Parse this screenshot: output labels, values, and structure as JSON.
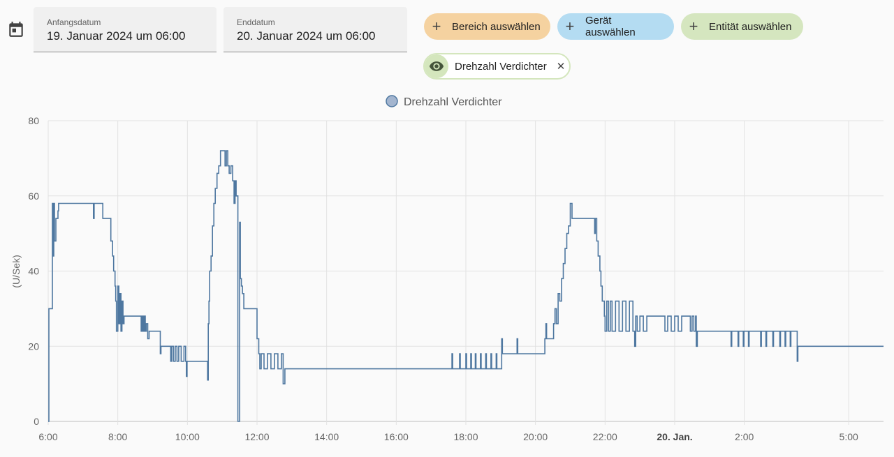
{
  "header": {
    "start_label": "Anfangsdatum",
    "start_value": "19. Januar 2024 um 06:00",
    "end_label": "Enddatum",
    "end_value": "20. Januar 2024 um 06:00"
  },
  "chips": [
    {
      "label": "Bereich auswählen",
      "color": "#f5d2a0"
    },
    {
      "label": "Gerät auswählen",
      "color": "#b4dcf2"
    },
    {
      "label": "Entität auswählen",
      "color": "#d5e6bf"
    }
  ],
  "selected_entity": {
    "label": "Drehzahl Verdichter",
    "icon": "eye-icon",
    "close_icon": "close-icon",
    "color": "#d4e6bd"
  },
  "chart_data": {
    "type": "line",
    "step": true,
    "legend": {
      "placement": "top-center",
      "entries": [
        "Drehzahl Verdichter"
      ]
    },
    "ylabel": "(U/Sek)",
    "ylim": [
      0,
      80
    ],
    "yticks": [
      "0",
      "20",
      "40",
      "60",
      "80"
    ],
    "xlim_hours": [
      6,
      30
    ],
    "xticks": [
      {
        "h": 6,
        "label": "6:00"
      },
      {
        "h": 8,
        "label": "8:00"
      },
      {
        "h": 10,
        "label": "10:00"
      },
      {
        "h": 12,
        "label": "12:00"
      },
      {
        "h": 14,
        "label": "14:00"
      },
      {
        "h": 16,
        "label": "16:00"
      },
      {
        "h": 18,
        "label": "18:00"
      },
      {
        "h": 20,
        "label": "20:00"
      },
      {
        "h": 22,
        "label": "22:00"
      },
      {
        "h": 24,
        "label": "20. Jan.",
        "bold": true
      },
      {
        "h": 26,
        "label": "2:00"
      },
      {
        "h": 29,
        "label": "5:00"
      }
    ],
    "grid": true,
    "series": [
      {
        "name": "Drehzahl Verdichter",
        "color": "#4e77a0",
        "points": [
          [
            6.0,
            0
          ],
          [
            6.02,
            30
          ],
          [
            6.1,
            30
          ],
          [
            6.12,
            58
          ],
          [
            6.14,
            44
          ],
          [
            6.16,
            58
          ],
          [
            6.18,
            48
          ],
          [
            6.22,
            54
          ],
          [
            6.28,
            56
          ],
          [
            6.3,
            58
          ],
          [
            7.28,
            58
          ],
          [
            7.3,
            54
          ],
          [
            7.32,
            58
          ],
          [
            7.55,
            58
          ],
          [
            7.57,
            54
          ],
          [
            7.78,
            54
          ],
          [
            7.8,
            48
          ],
          [
            7.85,
            44
          ],
          [
            7.88,
            40
          ],
          [
            7.92,
            36
          ],
          [
            7.94,
            32
          ],
          [
            7.96,
            24
          ],
          [
            8.0,
            36
          ],
          [
            8.03,
            26
          ],
          [
            8.06,
            34
          ],
          [
            8.09,
            24
          ],
          [
            8.12,
            32
          ],
          [
            8.15,
            26
          ],
          [
            8.18,
            28
          ],
          [
            8.65,
            28
          ],
          [
            8.67,
            24
          ],
          [
            8.7,
            28
          ],
          [
            8.73,
            24
          ],
          [
            8.76,
            28
          ],
          [
            8.79,
            24
          ],
          [
            8.82,
            26
          ],
          [
            8.86,
            22
          ],
          [
            8.9,
            24
          ],
          [
            9.2,
            24
          ],
          [
            9.22,
            18
          ],
          [
            9.24,
            20
          ],
          [
            9.5,
            20
          ],
          [
            9.52,
            16
          ],
          [
            9.55,
            20
          ],
          [
            9.6,
            16
          ],
          [
            9.65,
            20
          ],
          [
            9.7,
            16
          ],
          [
            9.75,
            20
          ],
          [
            9.82,
            16
          ],
          [
            9.9,
            20
          ],
          [
            9.95,
            16
          ],
          [
            9.97,
            12
          ],
          [
            9.99,
            16
          ],
          [
            10.55,
            16
          ],
          [
            10.58,
            11
          ],
          [
            10.6,
            26
          ],
          [
            10.62,
            32
          ],
          [
            10.64,
            40
          ],
          [
            10.68,
            44
          ],
          [
            10.72,
            52
          ],
          [
            10.76,
            58
          ],
          [
            10.8,
            62
          ],
          [
            10.85,
            66
          ],
          [
            10.9,
            68
          ],
          [
            10.95,
            72
          ],
          [
            11.05,
            72
          ],
          [
            11.08,
            68
          ],
          [
            11.12,
            72
          ],
          [
            11.16,
            68
          ],
          [
            11.2,
            66
          ],
          [
            11.25,
            68
          ],
          [
            11.3,
            64
          ],
          [
            11.34,
            58
          ],
          [
            11.37,
            64
          ],
          [
            11.4,
            60
          ],
          [
            11.45,
            0
          ],
          [
            11.5,
            53
          ],
          [
            11.52,
            38
          ],
          [
            11.55,
            36
          ],
          [
            11.58,
            34
          ],
          [
            11.62,
            30
          ],
          [
            11.95,
            30
          ],
          [
            12.0,
            22
          ],
          [
            12.05,
            18
          ],
          [
            12.08,
            14
          ],
          [
            12.12,
            18
          ],
          [
            12.2,
            14
          ],
          [
            12.3,
            18
          ],
          [
            12.4,
            14
          ],
          [
            12.5,
            18
          ],
          [
            12.6,
            14
          ],
          [
            12.7,
            18
          ],
          [
            12.75,
            10
          ],
          [
            12.8,
            14
          ],
          [
            17.58,
            14
          ],
          [
            17.6,
            18
          ],
          [
            17.62,
            14
          ],
          [
            17.8,
            14
          ],
          [
            17.82,
            18
          ],
          [
            17.84,
            14
          ],
          [
            17.98,
            14
          ],
          [
            18.0,
            18
          ],
          [
            18.02,
            14
          ],
          [
            18.12,
            14
          ],
          [
            18.14,
            18
          ],
          [
            18.16,
            14
          ],
          [
            18.25,
            14
          ],
          [
            18.27,
            18
          ],
          [
            18.29,
            14
          ],
          [
            18.4,
            14
          ],
          [
            18.42,
            18
          ],
          [
            18.44,
            14
          ],
          [
            18.55,
            14
          ],
          [
            18.57,
            18
          ],
          [
            18.59,
            14
          ],
          [
            18.7,
            14
          ],
          [
            18.72,
            18
          ],
          [
            18.74,
            14
          ],
          [
            18.85,
            14
          ],
          [
            18.87,
            18
          ],
          [
            18.89,
            14
          ],
          [
            19.0,
            14
          ],
          [
            19.03,
            22
          ],
          [
            19.05,
            18
          ],
          [
            19.45,
            18
          ],
          [
            19.47,
            22
          ],
          [
            19.49,
            18
          ],
          [
            20.25,
            18
          ],
          [
            20.27,
            22
          ],
          [
            20.3,
            26
          ],
          [
            20.32,
            22
          ],
          [
            20.5,
            22
          ],
          [
            20.52,
            26
          ],
          [
            20.56,
            30
          ],
          [
            20.6,
            26
          ],
          [
            20.65,
            34
          ],
          [
            20.7,
            32
          ],
          [
            20.75,
            38
          ],
          [
            20.8,
            42
          ],
          [
            20.85,
            46
          ],
          [
            20.9,
            50
          ],
          [
            20.95,
            52
          ],
          [
            21.0,
            58
          ],
          [
            21.05,
            54
          ],
          [
            21.65,
            54
          ],
          [
            21.7,
            50
          ],
          [
            21.72,
            54
          ],
          [
            21.76,
            48
          ],
          [
            21.8,
            44
          ],
          [
            21.85,
            40
          ],
          [
            21.88,
            36
          ],
          [
            21.92,
            32
          ],
          [
            21.98,
            28
          ],
          [
            22.0,
            24
          ],
          [
            22.05,
            32
          ],
          [
            22.1,
            24
          ],
          [
            22.15,
            32
          ],
          [
            22.2,
            24
          ],
          [
            22.3,
            32
          ],
          [
            22.4,
            24
          ],
          [
            22.5,
            32
          ],
          [
            22.6,
            24
          ],
          [
            22.7,
            32
          ],
          [
            22.8,
            24
          ],
          [
            22.85,
            20
          ],
          [
            22.88,
            28
          ],
          [
            22.92,
            24
          ],
          [
            23.0,
            28
          ],
          [
            23.1,
            24
          ],
          [
            23.2,
            28
          ],
          [
            23.7,
            28
          ],
          [
            23.72,
            24
          ],
          [
            23.8,
            28
          ],
          [
            23.9,
            24
          ],
          [
            24.0,
            28
          ],
          [
            24.1,
            24
          ],
          [
            24.2,
            28
          ],
          [
            24.4,
            28
          ],
          [
            24.45,
            24
          ],
          [
            24.5,
            28
          ],
          [
            24.55,
            24
          ],
          [
            24.6,
            28
          ],
          [
            24.62,
            20
          ],
          [
            24.65,
            24
          ],
          [
            25.6,
            24
          ],
          [
            25.62,
            20
          ],
          [
            25.64,
            24
          ],
          [
            25.8,
            24
          ],
          [
            25.82,
            20
          ],
          [
            25.84,
            24
          ],
          [
            25.95,
            24
          ],
          [
            25.97,
            20
          ],
          [
            25.99,
            24
          ],
          [
            26.1,
            24
          ],
          [
            26.12,
            20
          ],
          [
            26.14,
            24
          ],
          [
            26.45,
            24
          ],
          [
            26.47,
            20
          ],
          [
            26.49,
            24
          ],
          [
            26.6,
            24
          ],
          [
            26.62,
            20
          ],
          [
            26.64,
            24
          ],
          [
            26.8,
            24
          ],
          [
            26.82,
            20
          ],
          [
            26.84,
            24
          ],
          [
            27.0,
            24
          ],
          [
            27.02,
            20
          ],
          [
            27.04,
            24
          ],
          [
            27.15,
            24
          ],
          [
            27.17,
            20
          ],
          [
            27.19,
            24
          ],
          [
            27.3,
            24
          ],
          [
            27.32,
            20
          ],
          [
            27.34,
            24
          ],
          [
            27.5,
            24
          ],
          [
            27.52,
            16
          ],
          [
            27.54,
            20
          ],
          [
            30.0,
            20
          ]
        ]
      }
    ]
  }
}
